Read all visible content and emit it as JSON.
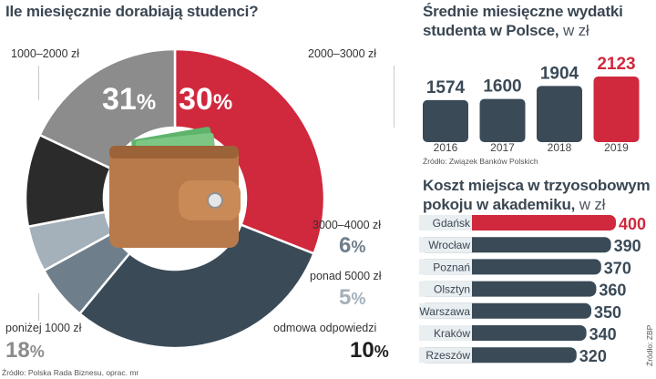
{
  "chart_data": [
    {
      "type": "pie",
      "title": "Ile miesięcznie dorabiają studenci?",
      "slices": [
        {
          "label": "1000–2000 zł",
          "value": 31,
          "display": "31",
          "color": "#d0283d"
        },
        {
          "label": "2000–3000 zł",
          "value": 30,
          "display": "30",
          "color": "#3a4a57"
        },
        {
          "label": "3000–4000 zł",
          "value": 6,
          "display": "6",
          "color": "#6e7e8b"
        },
        {
          "label": "ponad 5000 zł",
          "value": 5,
          "display": "5",
          "color": "#a4b0ba"
        },
        {
          "label": "odmowa odpowiedzi",
          "value": 10,
          "display": "10",
          "color": "#2b2b2b"
        },
        {
          "label": "poniżej 1000 zł",
          "value": 18,
          "display": "18",
          "color": "#8c8c8c"
        }
      ],
      "percent_sign": "%",
      "source": "Źródło: Polska Rada Biznesu, oprac. mr"
    },
    {
      "type": "bar",
      "title": "Średnie miesięczne wydatki studenta w Polsce,",
      "title_unit": "w zł",
      "categories": [
        "2016",
        "2017",
        "2018",
        "2019"
      ],
      "values": [
        1574,
        1600,
        1904,
        2123
      ],
      "colors": [
        "#3a4a57",
        "#3a4a57",
        "#3a4a57",
        "#d0283d"
      ],
      "source": "Źródło: Związek Banków Polskich"
    },
    {
      "type": "bar",
      "orientation": "horizontal",
      "title": "Koszt miejsca w trzyosobowym pokoju w akademiku,",
      "title_unit": "w zł",
      "categories": [
        "Gdańsk",
        "Wrocław",
        "Poznań",
        "Olsztyn",
        "Warszawa",
        "Kraków",
        "Rzeszów"
      ],
      "values": [
        400,
        390,
        370,
        360,
        350,
        340,
        320
      ],
      "colors": [
        "#d0283d",
        "#3a4a57",
        "#3a4a57",
        "#3a4a57",
        "#3a4a57",
        "#3a4a57",
        "#3a4a57"
      ],
      "source": "Źródło: ZBP"
    }
  ],
  "icons": {
    "wallet": "wallet-icon"
  },
  "palette": {
    "red": "#d0283d",
    "dark": "#3a4a57",
    "text": "#3a4752"
  }
}
